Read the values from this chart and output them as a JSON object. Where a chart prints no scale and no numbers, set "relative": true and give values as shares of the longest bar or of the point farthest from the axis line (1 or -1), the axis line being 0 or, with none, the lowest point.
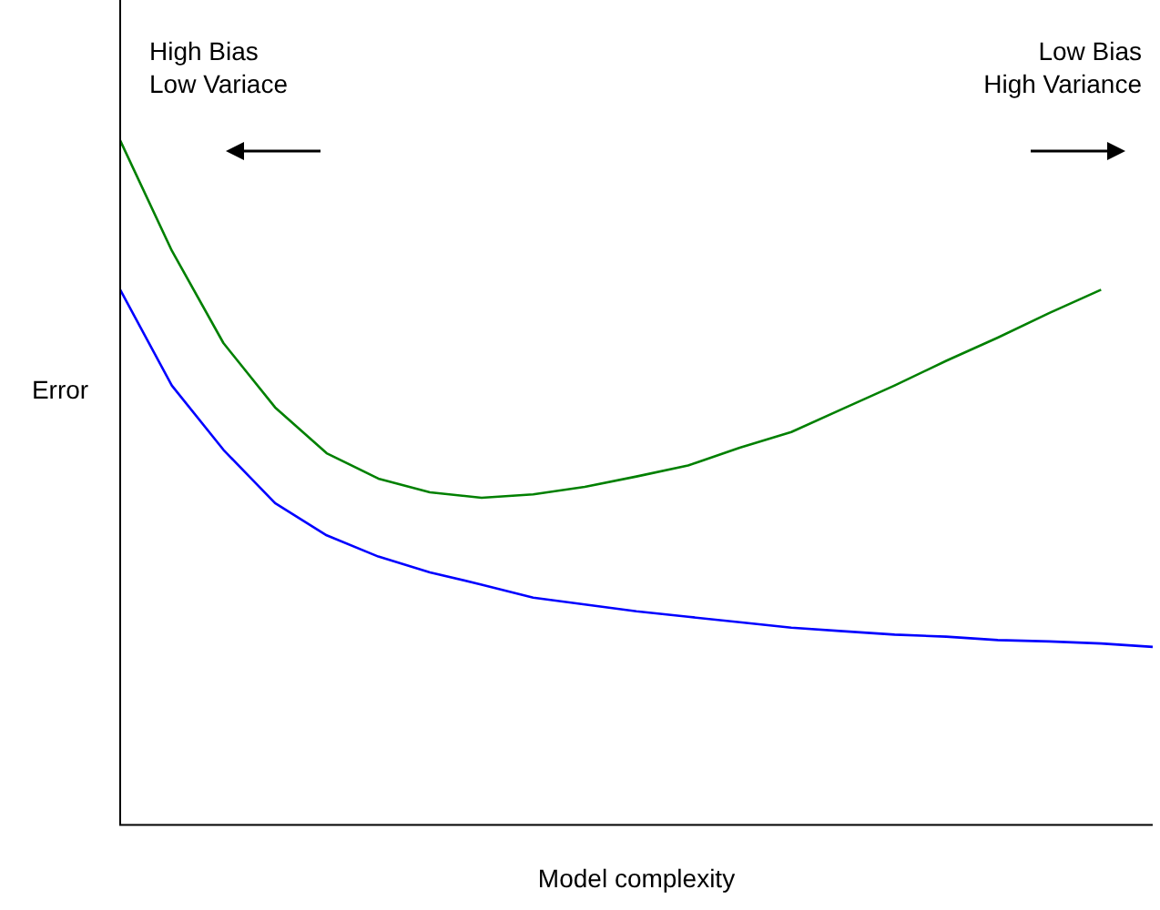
{
  "chart_data": {
    "type": "line",
    "relative": true,
    "xlabel": "Model complexity",
    "ylabel": "Error",
    "marker": "none",
    "annotations": [
      "High Bias\nLow Variace",
      "Low Bias\nHigh Variance"
    ],
    "categories": [
      null,
      null,
      null,
      null,
      null,
      null,
      null,
      null,
      null,
      null,
      null,
      null,
      null,
      null,
      null,
      null,
      null,
      null,
      null,
      null,
      null
    ],
    "series": [
      {
        "color": "#008000",
        "values": [
          1,
          0.839,
          0.704,
          0.61,
          0.543,
          0.506,
          0.486,
          0.478,
          0.483,
          0.494,
          0.509,
          0.525,
          0.551,
          0.574,
          0.608,
          0.642,
          0.678,
          0.712,
          0.748,
          0.782,
          null
        ]
      },
      {
        "color": "#0000ff",
        "values": [
          0.782,
          0.642,
          0.548,
          0.47,
          0.423,
          0.392,
          0.369,
          0.351,
          0.332,
          0.322,
          0.312,
          0.304,
          0.296,
          0.288,
          0.283,
          0.278,
          0.275,
          0.27,
          0.268,
          0.265,
          0.26
        ]
      }
    ]
  }
}
